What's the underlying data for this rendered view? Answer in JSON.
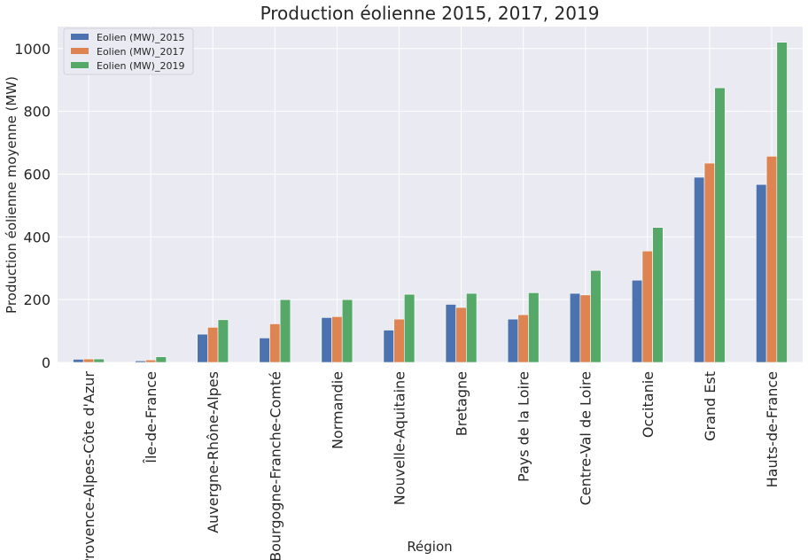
{
  "chart_data": {
    "type": "bar",
    "title": "Production éolienne 2015, 2017, 2019",
    "xlabel": "Région",
    "ylabel": "Production éolienne moyenne (MW)",
    "ylim": [
      0,
      1070
    ],
    "yticks": [
      0,
      200,
      400,
      600,
      800,
      1000
    ],
    "grid": true,
    "legend_position": "top-left",
    "categories": [
      "Provence-Alpes-Côte d'Azur",
      "Île-de-France",
      "Auvergne-Rhône-Alpes",
      "Bourgogne-Franche-Comté",
      "Normandie",
      "Nouvelle-Aquitaine",
      "Bretagne",
      "Pays de la Loire",
      "Centre-Val de Loire",
      "Occitanie",
      "Grand Est",
      "Hauts-de-France"
    ],
    "series": [
      {
        "name": "Eolien (MW)_2015",
        "color": "#4c72b0",
        "values": [
          10,
          5,
          90,
          78,
          143,
          103,
          185,
          138,
          220,
          262,
          590,
          567
        ]
      },
      {
        "name": "Eolien (MW)_2017",
        "color": "#dd8452",
        "values": [
          11,
          8,
          112,
          123,
          146,
          138,
          175,
          152,
          215,
          355,
          635,
          657
        ]
      },
      {
        "name": "Eolien (MW)_2019",
        "color": "#55a868",
        "values": [
          11,
          18,
          136,
          200,
          200,
          217,
          220,
          222,
          293,
          430,
          875,
          1020
        ]
      }
    ]
  }
}
